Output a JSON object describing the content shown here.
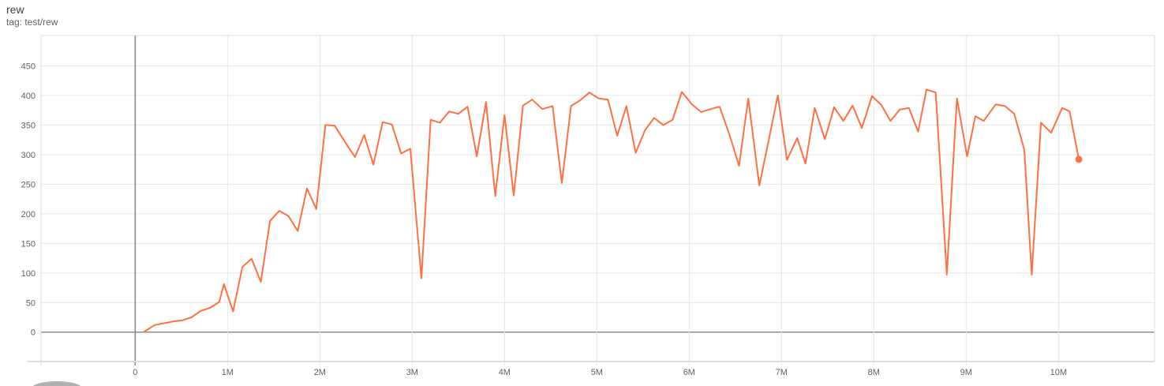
{
  "header": {
    "title": "rew",
    "subtitle": "tag: test/rew"
  },
  "chart_data": {
    "type": "line",
    "title": "rew",
    "subtitle": "tag: test/rew",
    "xlabel": "",
    "ylabel": "",
    "grid": true,
    "legend": "none",
    "xlim_millions": [
      -1.02,
      11.04
    ],
    "ylim": [
      -49.7,
      501.3
    ],
    "x_ticks": [
      {
        "value": 0,
        "label": "0"
      },
      {
        "value": 1,
        "label": "1M"
      },
      {
        "value": 2,
        "label": "2M"
      },
      {
        "value": 3,
        "label": "3M"
      },
      {
        "value": 4,
        "label": "4M"
      },
      {
        "value": 5,
        "label": "5M"
      },
      {
        "value": 6,
        "label": "6M"
      },
      {
        "value": 7,
        "label": "7M"
      },
      {
        "value": 8,
        "label": "8M"
      },
      {
        "value": 9,
        "label": "9M"
      },
      {
        "value": 10,
        "label": "10M"
      }
    ],
    "y_ticks": [
      0,
      50,
      100,
      150,
      200,
      250,
      300,
      350,
      400,
      450
    ],
    "series": [
      {
        "name": "test/rew",
        "color": "#ff7043",
        "end_marker": true,
        "points_step_millions_value": [
          [
            0.1,
            1
          ],
          [
            0.21,
            12
          ],
          [
            0.31,
            15
          ],
          [
            0.41,
            18
          ],
          [
            0.51,
            20
          ],
          [
            0.61,
            25
          ],
          [
            0.71,
            36
          ],
          [
            0.81,
            41
          ],
          [
            0.91,
            51
          ],
          [
            0.96,
            81
          ],
          [
            1.06,
            35
          ],
          [
            1.16,
            110
          ],
          [
            1.26,
            124
          ],
          [
            1.36,
            85
          ],
          [
            1.46,
            188
          ],
          [
            1.56,
            205
          ],
          [
            1.66,
            196
          ],
          [
            1.76,
            171
          ],
          [
            1.86,
            243
          ],
          [
            1.96,
            208
          ],
          [
            2.06,
            350
          ],
          [
            2.16,
            349
          ],
          [
            2.27,
            322
          ],
          [
            2.38,
            296
          ],
          [
            2.48,
            333
          ],
          [
            2.58,
            283
          ],
          [
            2.68,
            355
          ],
          [
            2.78,
            351
          ],
          [
            2.88,
            302
          ],
          [
            2.98,
            310
          ],
          [
            3.1,
            91
          ],
          [
            3.2,
            359
          ],
          [
            3.3,
            354
          ],
          [
            3.4,
            373
          ],
          [
            3.5,
            369
          ],
          [
            3.6,
            381
          ],
          [
            3.7,
            297
          ],
          [
            3.8,
            389
          ],
          [
            3.9,
            230
          ],
          [
            4.0,
            367
          ],
          [
            4.1,
            231
          ],
          [
            4.2,
            383
          ],
          [
            4.3,
            393
          ],
          [
            4.41,
            377
          ],
          [
            4.52,
            382
          ],
          [
            4.62,
            252
          ],
          [
            4.72,
            382
          ],
          [
            4.82,
            392
          ],
          [
            4.92,
            405
          ],
          [
            5.02,
            395
          ],
          [
            5.12,
            393
          ],
          [
            5.22,
            332
          ],
          [
            5.32,
            382
          ],
          [
            5.42,
            303
          ],
          [
            5.52,
            341
          ],
          [
            5.62,
            362
          ],
          [
            5.72,
            350
          ],
          [
            5.82,
            359
          ],
          [
            5.92,
            406
          ],
          [
            6.03,
            385
          ],
          [
            6.13,
            372
          ],
          [
            6.23,
            377
          ],
          [
            6.33,
            381
          ],
          [
            6.44,
            332
          ],
          [
            6.54,
            281
          ],
          [
            6.64,
            395
          ],
          [
            6.76,
            248
          ],
          [
            6.86,
            323
          ],
          [
            6.96,
            400
          ],
          [
            7.06,
            291
          ],
          [
            7.17,
            328
          ],
          [
            7.26,
            285
          ],
          [
            7.36,
            379
          ],
          [
            7.47,
            326
          ],
          [
            7.57,
            380
          ],
          [
            7.67,
            357
          ],
          [
            7.77,
            383
          ],
          [
            7.87,
            345
          ],
          [
            7.98,
            399
          ],
          [
            8.08,
            384
          ],
          [
            8.18,
            357
          ],
          [
            8.28,
            376
          ],
          [
            8.38,
            379
          ],
          [
            8.48,
            339
          ],
          [
            8.57,
            410
          ],
          [
            8.67,
            405
          ],
          [
            8.79,
            97
          ],
          [
            8.9,
            395
          ],
          [
            9.01,
            297
          ],
          [
            9.1,
            365
          ],
          [
            9.19,
            357
          ],
          [
            9.32,
            385
          ],
          [
            9.42,
            382
          ],
          [
            9.52,
            369
          ],
          [
            9.63,
            308
          ],
          [
            9.71,
            97
          ],
          [
            9.81,
            354
          ],
          [
            9.92,
            337
          ],
          [
            10.04,
            379
          ],
          [
            10.12,
            373
          ],
          [
            10.22,
            292
          ]
        ]
      }
    ]
  },
  "colors": {
    "line": "#ff7043",
    "grid_light": "#e6e6e6",
    "grid_zero": "#8c8c8c",
    "plot_border": "#dcdcdc",
    "tick_label": "#616161",
    "title_text": "#3d3d3d",
    "subtitle_text": "#616161"
  }
}
